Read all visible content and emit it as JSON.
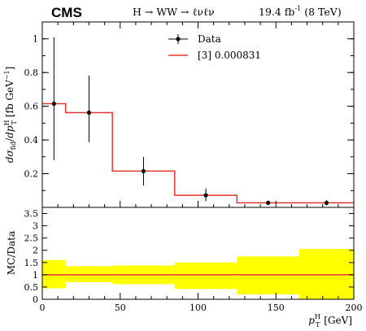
{
  "header": {
    "experiment": "CMS",
    "process": "H → WW → ℓνℓν",
    "lumi": "19.4 fb",
    "lumi_exp": "-1",
    "energy": "(8 TeV)"
  },
  "colors": {
    "data": "#000000",
    "prediction": "#e8362a",
    "band": "#ffff00"
  },
  "chart_data": [
    {
      "type": "line",
      "panel": "main",
      "ylabel": "dσfid/dp T H [fb GeV⁻¹]",
      "ylim": [
        0,
        1.1
      ],
      "xlim": [
        0,
        200
      ],
      "yticks": [
        0.2,
        0.4,
        0.6,
        0.8,
        1
      ],
      "ytick_labels": [
        "0.2",
        "0.4",
        "0.6",
        "0.8",
        "1"
      ],
      "legend": {
        "placement": "top-center",
        "entries": [
          "Data",
          "[3] 0.000831"
        ]
      },
      "series": [
        {
          "name": "Data",
          "kind": "points",
          "x": [
            7.5,
            30,
            65,
            105,
            145,
            182.5
          ],
          "y": [
            0.615,
            0.562,
            0.215,
            0.072,
            0.027,
            0.027
          ],
          "err_low": [
            0.335,
            0.175,
            0.085,
            0.035,
            0.012,
            0.015
          ],
          "err_high": [
            0.395,
            0.22,
            0.085,
            0.04,
            0.012,
            0.015
          ]
        },
        {
          "name": "[3] 0.000831",
          "kind": "histogram",
          "edges": [
            0,
            15,
            45,
            85,
            125,
            165,
            200
          ],
          "values": [
            0.615,
            0.562,
            0.215,
            0.072,
            0.027,
            0.027
          ]
        }
      ]
    },
    {
      "type": "line",
      "panel": "ratio",
      "ylabel": "MC/Data",
      "xlabel": "p T H [GeV]",
      "ylim": [
        0,
        3.75
      ],
      "xlim": [
        0,
        200
      ],
      "yticks": [
        0,
        0.5,
        1,
        1.5,
        2,
        2.5,
        3,
        3.5
      ],
      "ytick_labels": [
        "0",
        "0.5",
        "1",
        "1.5",
        "2",
        "2.5",
        "3",
        "3.5"
      ],
      "xticks": [
        0,
        50,
        100,
        150,
        200
      ],
      "xtick_labels": [
        "0",
        "50",
        "100",
        "150",
        "200"
      ],
      "ratio": [
        1,
        1,
        1,
        1,
        1,
        1
      ],
      "band": {
        "edges": [
          0,
          15,
          45,
          85,
          125,
          165,
          200
        ],
        "low": [
          0.45,
          0.7,
          0.62,
          0.42,
          0.2,
          0.0
        ],
        "high": [
          1.6,
          1.35,
          1.38,
          1.5,
          1.75,
          2.05
        ]
      }
    }
  ]
}
